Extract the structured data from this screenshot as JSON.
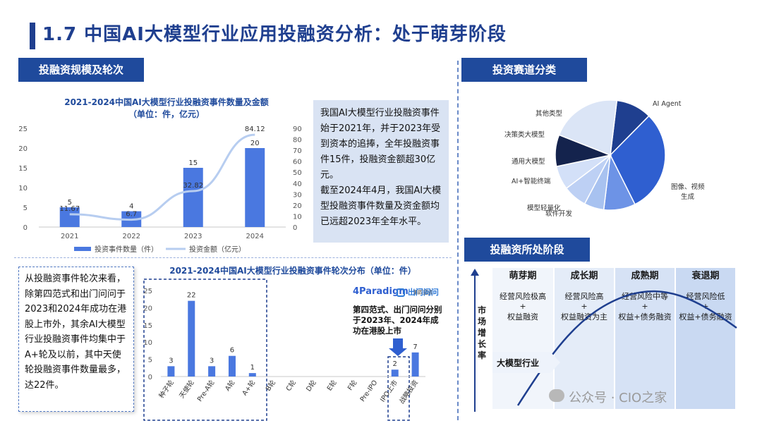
{
  "header": {
    "title": "1.7 中国AI大模型行业应用投融资分析：处于萌芽阶段"
  },
  "sections": {
    "scale": "投融资规模及轮次",
    "track": "投资赛道分类",
    "stage": "投融资所处阶段"
  },
  "chart1": {
    "title_line1": "2021-2024中国AI大模型行业投融资事件数量及金额",
    "title_line2": "（单位：件，亿元）",
    "legend_bar": "投资事件数量（件）",
    "legend_line": "投资金额（亿元）"
  },
  "note1": {
    "p1": "我国AI大模型行业投融资事件始于2021年，并于2023年受到资本的追捧，全年投融资事件15件，投融资金额超30亿元。",
    "p2": "截至2024年4月，我国AI大模型投融资事件数量及资金额均已远超2023年全年水平。"
  },
  "chart2": {
    "title": "2021-2024中国AI大模型行业投融资事件轮次分布（单位：件）",
    "annotation": "第四范式、出门问问分别于2023年、2024年成功在港股上市",
    "logo1": "4Paradigm",
    "logo1_sub": "第四范式",
    "logo2": "出门问问"
  },
  "note2": {
    "text": "从投融资事件轮次来看，除第四范式和出门问问于2023和2024年成功在港股上市外，其余AI大模型行业投融资事件均集中于A+轮及以前，其中天使轮投融资事件数量最多，达22件。"
  },
  "stages": {
    "y_axis": "市场增长率",
    "industry_label": "大模型行业",
    "columns": [
      {
        "name": "萌芽期",
        "line1": "经营风险极高",
        "plus": "+",
        "line2": "权益融资"
      },
      {
        "name": "成长期",
        "line1": "经营风险高",
        "plus": "+",
        "line2": "权益融资为主"
      },
      {
        "name": "成熟期",
        "line1": "经营风险中等",
        "plus": "+",
        "line2": "权益+债务融资"
      },
      {
        "name": "衰退期",
        "line1": "经营风险低",
        "plus": "+",
        "line2": "权益+债务融资"
      }
    ]
  },
  "watermark": "公众号 · CIO之家",
  "colors": {
    "primary": "#1f4a9c",
    "bar": "#4a78e0",
    "line": "#b7cdf0",
    "note_bg": "#d9e3f3"
  },
  "chart_data": [
    {
      "type": "bar",
      "title": "2021-2024中国AI大模型行业投融资事件数量及金额（单位：件，亿元）",
      "categories": [
        "2021",
        "2022",
        "2023",
        "2024"
      ],
      "series": [
        {
          "name": "投资事件数量（件）",
          "type": "bar",
          "axis": "left",
          "values": [
            5,
            4,
            15,
            20
          ]
        },
        {
          "name": "投资金额（亿元）",
          "type": "line",
          "axis": "right",
          "values": [
            11.67,
            6.7,
            32.82,
            84.12
          ]
        }
      ],
      "ylim_left": [
        0,
        25
      ],
      "yticks_left": [
        0,
        5,
        10,
        15,
        20,
        25
      ],
      "ylim_right": [
        0,
        90
      ],
      "yticks_right": [
        0,
        10,
        20,
        30,
        40,
        50,
        60,
        70,
        80,
        90
      ],
      "legend_position": "bottom"
    },
    {
      "type": "bar",
      "title": "2021-2024中国AI大模型行业投融资事件轮次分布（单位：件）",
      "categories": [
        "种子轮",
        "天使轮",
        "Pre-A轮",
        "A轮",
        "A+轮",
        "B轮",
        "C轮",
        "D轮",
        "E轮",
        "F轮",
        "Pre-IPO",
        "IPO上市",
        "战略投资"
      ],
      "values": [
        3,
        22,
        3,
        6,
        1,
        0,
        0,
        0,
        0,
        0,
        0,
        2,
        7
      ],
      "data_labels": [
        "3",
        "22",
        "3",
        "6",
        "1",
        "",
        "",
        "",
        "",
        "",
        "",
        "2",
        "7"
      ],
      "ylim": [
        0,
        25
      ],
      "yticks": [
        0,
        5,
        10,
        15,
        20,
        25
      ]
    },
    {
      "type": "pie",
      "title": "",
      "labels": [
        "AI Agent",
        "图像、视频生成",
        "软件开发",
        "模型轻量化",
        "AI+智能终端",
        "通用大模型",
        "决策类大模型",
        "其他类型"
      ],
      "values": [
        9,
        26,
        8,
        5,
        6,
        6,
        8,
        18
      ],
      "colors": [
        "#1f3f8f",
        "#2f5fd0",
        "#6d93e6",
        "#a8c2f0",
        "#bdd0f4",
        "#d3e0f8",
        "#14234d",
        "#dbe5f6"
      ]
    }
  ]
}
